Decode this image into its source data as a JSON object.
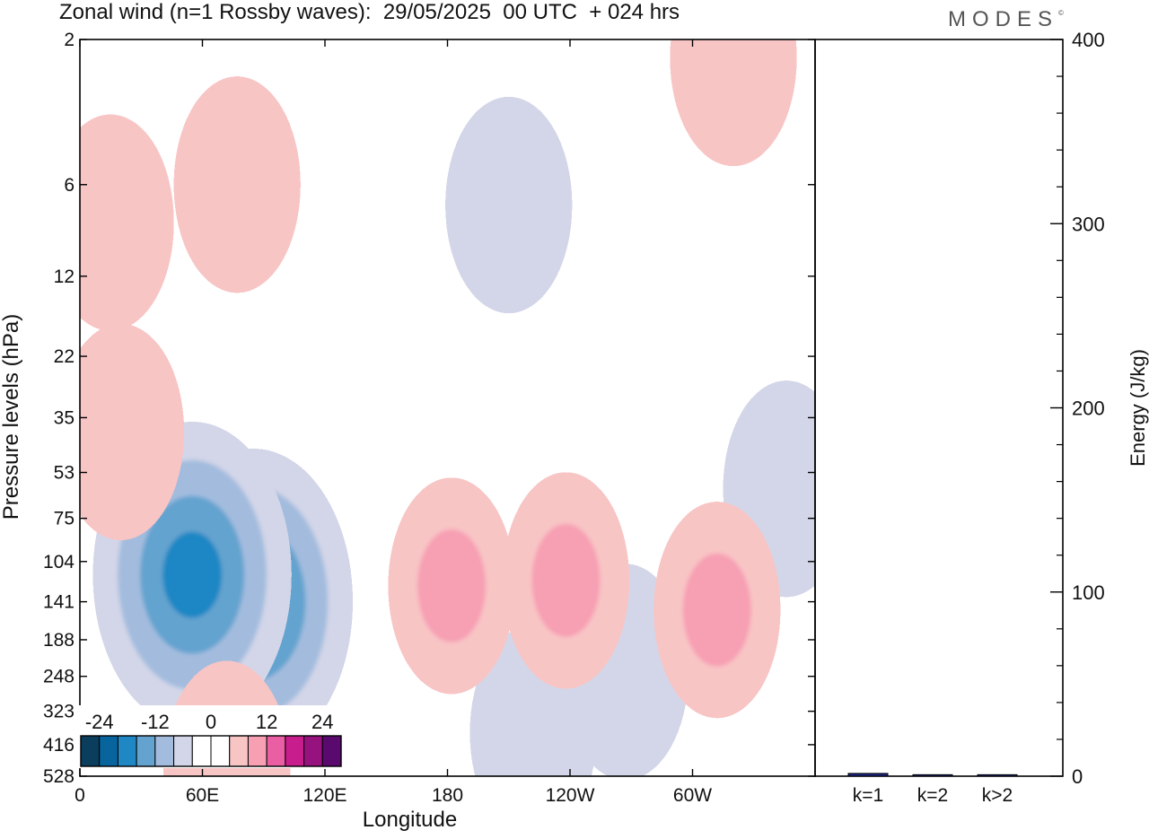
{
  "title": "Zonal wind (n=1 Rossby waves):  29/05/2025  00 UTC  + 024 hrs",
  "logo": "MODES",
  "logo_mark": "©",
  "chart_data": [
    {
      "type": "heatmap",
      "title": "Zonal wind (n=1 Rossby waves):  29/05/2025  00 UTC  + 024 hrs",
      "xlabel": "Longitude",
      "ylabel": "Pressure levels (hPa)",
      "x_ticks": [
        "0",
        "60E",
        "120E",
        "180",
        "120W",
        "60W"
      ],
      "y_ticks": [
        "2",
        "6",
        "12",
        "22",
        "35",
        "53",
        "75",
        "104",
        "141",
        "188",
        "248",
        "323",
        "416",
        "528"
      ],
      "xlim_deg_east": [
        0,
        360
      ],
      "y_scale": "log-pressure, top 2 hPa to bottom 528 hPa",
      "colorbar": {
        "tick_labels": [
          "-24",
          "-12",
          "0",
          "12",
          "24"
        ],
        "levels": [
          -24,
          -20,
          -16,
          -12,
          -8,
          -4,
          0,
          4,
          8,
          12,
          16,
          20,
          24
        ],
        "colors": [
          "#0b3d5c",
          "#08649c",
          "#1f87c4",
          "#64a3cf",
          "#a3bcde",
          "#d3d6e8",
          "#ffffff",
          "#ffffff",
          "#f8c5c5",
          "#f79fb3",
          "#ea5fa3",
          "#c71d8d",
          "#96127e",
          "#5a0a6e"
        ],
        "placement": "bottom-left"
      },
      "features": [
        {
          "sign": "negative",
          "peak": -16,
          "center_lon": 85,
          "center_hpa": 141
        },
        {
          "sign": "negative",
          "peak": -16,
          "center_lon": 55,
          "center_hpa": 115
        },
        {
          "sign": "negative",
          "peak": -4,
          "center_lon": 210,
          "center_hpa": 7
        },
        {
          "sign": "negative",
          "peak": -4,
          "center_lon": 267,
          "center_hpa": 240
        },
        {
          "sign": "negative",
          "peak": -4,
          "center_lon": 222,
          "center_hpa": 380
        },
        {
          "sign": "negative",
          "peak": -4,
          "center_lon": 346,
          "center_hpa": 60
        },
        {
          "sign": "positive",
          "peak": 8,
          "center_lon": 182,
          "center_hpa": 125
        },
        {
          "sign": "positive",
          "peak": 8,
          "center_lon": 238,
          "center_hpa": 120
        },
        {
          "sign": "positive",
          "peak": 8,
          "center_lon": 312,
          "center_hpa": 150
        },
        {
          "sign": "positive",
          "peak": 4,
          "center_lon": 77,
          "center_hpa": 6
        },
        {
          "sign": "positive",
          "peak": 4,
          "center_lon": 15,
          "center_hpa": 8
        },
        {
          "sign": "positive",
          "peak": 4,
          "center_lon": 320,
          "center_hpa": 2.3
        },
        {
          "sign": "positive",
          "peak": 4,
          "center_lon": 20,
          "center_hpa": 39
        },
        {
          "sign": "positive",
          "peak": 4,
          "center_lon": 72,
          "center_hpa": 500
        }
      ]
    },
    {
      "type": "bar",
      "ylabel": "Energy (J/kg)",
      "ylim": [
        0,
        400
      ],
      "y_ticks": [
        "0",
        "100",
        "200",
        "300",
        "400"
      ],
      "categories": [
        "k=1",
        "k=2",
        "k>2"
      ],
      "values": [
        1.5,
        0.8,
        0.8
      ],
      "bar_color": "#1a237e"
    }
  ]
}
